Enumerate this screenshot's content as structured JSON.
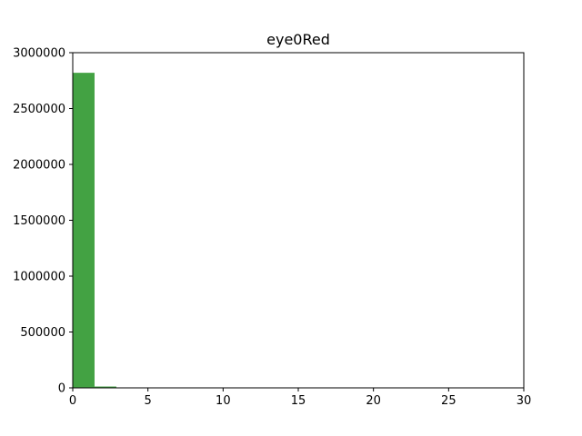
{
  "chart_data": {
    "type": "bar",
    "title": "eye0Red",
    "xlabel": "",
    "ylabel": "",
    "xlim": [
      0,
      30
    ],
    "ylim": [
      0,
      3000000
    ],
    "x_ticks": [
      0,
      5,
      10,
      15,
      20,
      25,
      30
    ],
    "y_ticks": [
      0,
      500000,
      1000000,
      1500000,
      2000000,
      2500000,
      3000000
    ],
    "bins": [
      {
        "x0": 0.0,
        "x1": 1.45,
        "value": 2820000
      },
      {
        "x0": 1.45,
        "x1": 2.9,
        "value": 12000
      },
      {
        "x0": 2.9,
        "x1": 4.35,
        "value": 1500
      }
    ],
    "bar_color": "#43a243",
    "grid": false
  }
}
